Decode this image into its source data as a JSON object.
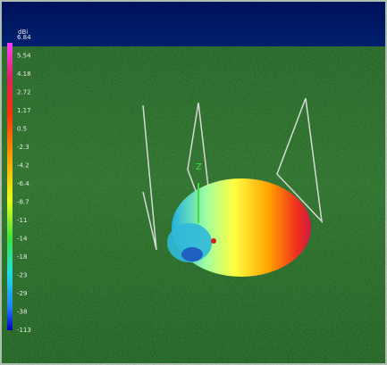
{
  "legend": {
    "title": "dBi",
    "ticks": [
      "6.84",
      "5.54",
      "4.18",
      "2.72",
      "1.17",
      "0.5",
      "-2.3",
      "-4.2",
      "-6.4",
      "-8.7",
      "-11",
      "-14",
      "-18",
      "-23",
      "-29",
      "-38",
      "-113"
    ]
  },
  "scene": {
    "axis_label": "Z"
  }
}
